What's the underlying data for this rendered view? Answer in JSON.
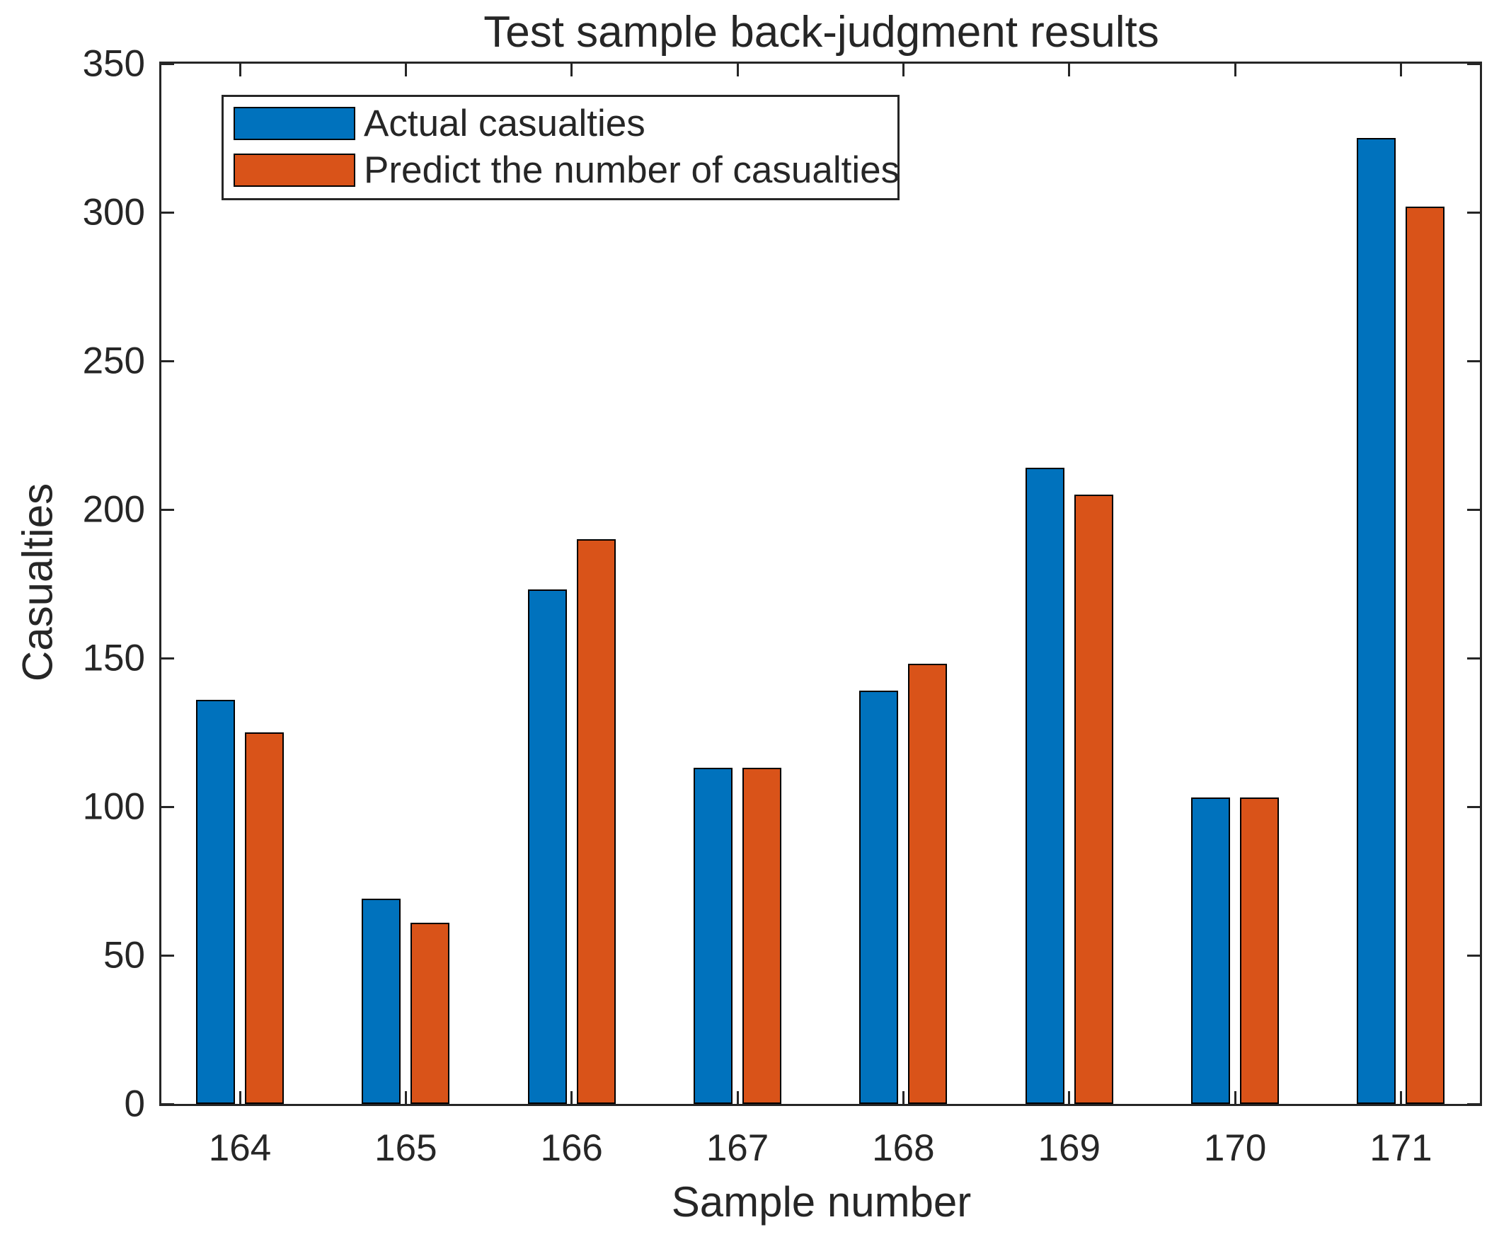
{
  "chart_data": {
    "type": "bar",
    "title": "Test sample back-judgment results",
    "xlabel": "Sample number",
    "ylabel": "Casualties",
    "categories": [
      "164",
      "165",
      "166",
      "167",
      "168",
      "169",
      "170",
      "171"
    ],
    "series": [
      {
        "name": "Actual casualties",
        "key": "actual",
        "color": "#0072BD",
        "values": [
          136,
          69,
          173,
          113,
          139,
          214,
          103,
          325
        ]
      },
      {
        "name": "Predict the number of casualties",
        "key": "predict",
        "color": "#D95319",
        "values": [
          125,
          61,
          190,
          113,
          148,
          205,
          103,
          302
        ]
      }
    ],
    "ylim": [
      0,
      350
    ],
    "yticks": [
      0,
      50,
      100,
      150,
      200,
      250,
      300,
      350
    ],
    "grid": false,
    "legend_position": "top-left-inside",
    "bar_edge_color": "#000000",
    "axis_color": "#262626",
    "background": "#ffffff"
  }
}
